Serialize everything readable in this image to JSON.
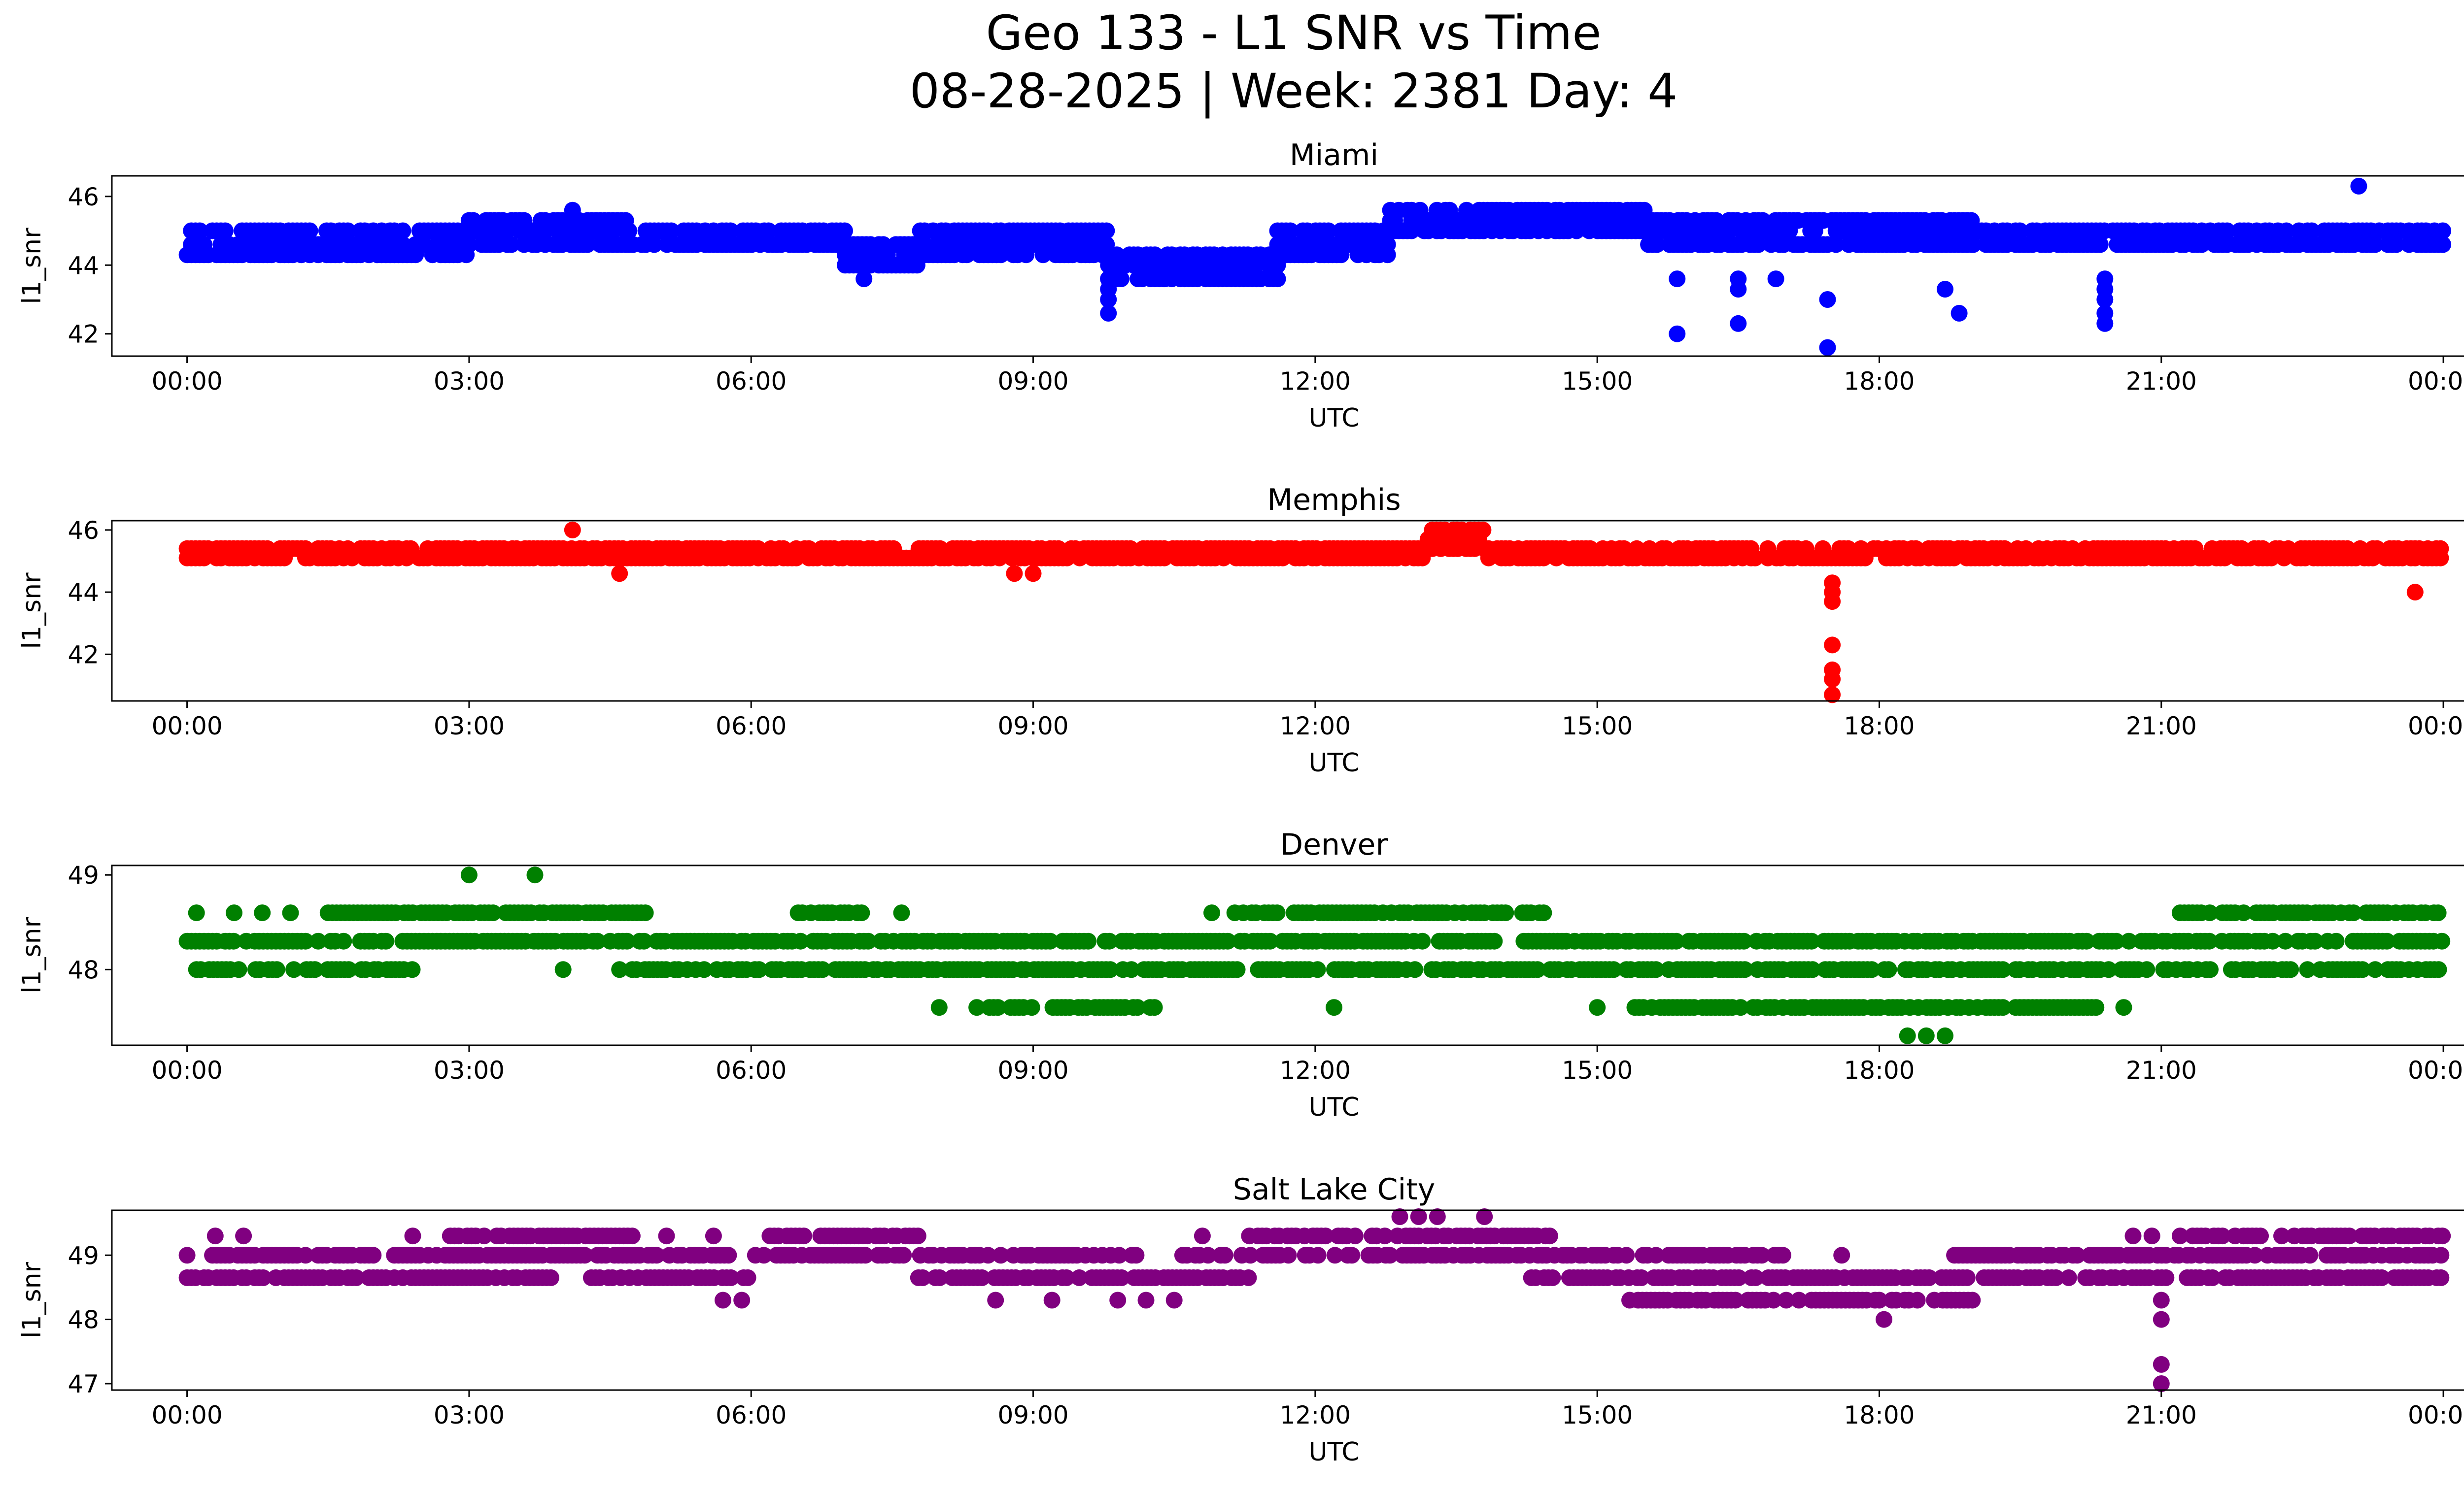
{
  "figure": {
    "title_line1": "Geo 133 - L1 SNR vs Time",
    "title_line2": "08-28-2025 | Week: 2381 Day: 4"
  },
  "chart_data": [
    {
      "type": "scatter",
      "title": "Miami",
      "xlabel": "UTC",
      "ylabel": "l1_snr",
      "color": "#0000ff",
      "xlim": [
        -0.8,
        25.2
      ],
      "ylim": [
        41.35,
        46.6
      ],
      "xticks": [
        0,
        3,
        6,
        9,
        12,
        15,
        18,
        21,
        24
      ],
      "xtick_labels": [
        "00:00",
        "03:00",
        "06:00",
        "09:00",
        "12:00",
        "15:00",
        "18:00",
        "21:00",
        "00:00"
      ],
      "yticks": [
        42,
        44,
        46
      ],
      "ytick_labels": [
        "42",
        "44",
        "46"
      ],
      "band_segments": [
        {
          "x": [
            0.0,
            3.0
          ],
          "levels": [
            44.3,
            44.6,
            45.0
          ]
        },
        {
          "x": [
            3.0,
            4.7
          ],
          "levels": [
            44.6,
            45.0,
            45.3
          ]
        },
        {
          "x": [
            4.7,
            7.0
          ],
          "levels": [
            44.6,
            45.0
          ]
        },
        {
          "x": [
            7.0,
            7.8
          ],
          "levels": [
            44.0,
            44.3,
            44.6
          ]
        },
        {
          "x": [
            7.8,
            9.8
          ],
          "levels": [
            44.3,
            44.6,
            45.0
          ]
        },
        {
          "x": [
            9.8,
            11.6
          ],
          "levels": [
            43.6,
            44.0,
            44.3
          ]
        },
        {
          "x": [
            11.6,
            12.8
          ],
          "levels": [
            44.3,
            44.6,
            45.0
          ]
        },
        {
          "x": [
            12.8,
            15.5
          ],
          "levels": [
            45.0,
            45.3,
            45.6
          ]
        },
        {
          "x": [
            15.5,
            17.0
          ],
          "levels": [
            44.6,
            45.0,
            45.3
          ]
        },
        {
          "x": [
            17.0,
            19.0
          ],
          "levels": [
            44.6,
            45.0,
            45.3
          ]
        },
        {
          "x": [
            19.0,
            24.0
          ],
          "levels": [
            44.6,
            45.0
          ]
        }
      ],
      "points": [
        [
          9.8,
          42.6
        ],
        [
          9.8,
          43.0
        ],
        [
          9.8,
          43.3
        ],
        [
          9.8,
          43.6
        ],
        [
          15.85,
          42.0
        ],
        [
          15.85,
          43.6
        ],
        [
          16.5,
          42.3
        ],
        [
          16.5,
          43.3
        ],
        [
          16.5,
          43.6
        ],
        [
          16.9,
          43.6
        ],
        [
          17.45,
          41.6
        ],
        [
          17.45,
          43.0
        ],
        [
          18.7,
          43.3
        ],
        [
          18.85,
          42.6
        ],
        [
          20.4,
          42.3
        ],
        [
          20.4,
          42.6
        ],
        [
          20.4,
          43.0
        ],
        [
          20.4,
          43.3
        ],
        [
          20.4,
          43.6
        ],
        [
          23.1,
          46.3
        ],
        [
          4.1,
          45.6
        ],
        [
          7.2,
          43.6
        ],
        [
          10.4,
          43.6
        ]
      ]
    },
    {
      "type": "scatter",
      "title": "Memphis",
      "xlabel": "UTC",
      "ylabel": "l1_snr",
      "color": "#ff0000",
      "xlim": [
        -0.8,
        25.2
      ],
      "ylim": [
        40.5,
        46.3
      ],
      "xticks": [
        0,
        3,
        6,
        9,
        12,
        15,
        18,
        21,
        24
      ],
      "xtick_labels": [
        "00:00",
        "03:00",
        "06:00",
        "09:00",
        "12:00",
        "15:00",
        "18:00",
        "21:00",
        "00:00"
      ],
      "yticks": [
        42,
        44,
        46
      ],
      "ytick_labels": [
        "42",
        "44",
        "46"
      ],
      "band_segments": [
        {
          "x": [
            0.0,
            2.2
          ],
          "levels": [
            45.1,
            45.4
          ]
        },
        {
          "x": [
            2.2,
            4.5
          ],
          "levels": [
            45.1,
            45.4
          ]
        },
        {
          "x": [
            4.5,
            13.2
          ],
          "levels": [
            45.1,
            45.4
          ]
        },
        {
          "x": [
            13.2,
            13.8
          ],
          "levels": [
            45.4,
            45.7,
            46.0
          ]
        },
        {
          "x": [
            13.8,
            24.0
          ],
          "levels": [
            45.1,
            45.4
          ]
        }
      ],
      "points": [
        [
          17.5,
          40.7
        ],
        [
          17.5,
          41.2
        ],
        [
          17.5,
          41.5
        ],
        [
          17.5,
          42.3
        ],
        [
          17.5,
          43.7
        ],
        [
          17.5,
          44.0
        ],
        [
          17.5,
          44.3
        ],
        [
          23.7,
          44.0
        ],
        [
          4.1,
          46.0
        ],
        [
          13.5,
          46.0
        ],
        [
          4.6,
          44.6
        ],
        [
          8.8,
          44.6
        ],
        [
          9.0,
          44.6
        ]
      ]
    },
    {
      "type": "scatter",
      "title": "Denver",
      "xlabel": "UTC",
      "ylabel": "l1_snr",
      "color": "#008000",
      "xlim": [
        -0.8,
        25.2
      ],
      "ylim": [
        47.2,
        49.1
      ],
      "xticks": [
        0,
        3,
        6,
        9,
        12,
        15,
        18,
        21,
        24
      ],
      "xtick_labels": [
        "00:00",
        "03:00",
        "06:00",
        "09:00",
        "12:00",
        "15:00",
        "18:00",
        "21:00",
        "00:00"
      ],
      "yticks": [
        48,
        49
      ],
      "ytick_labels": [
        "48",
        "49"
      ],
      "band_segments": [
        {
          "x": [
            0.0,
            24.0
          ],
          "levels": [
            48.3
          ]
        },
        {
          "x": [
            0.1,
            2.4
          ],
          "levels": [
            48.0
          ]
        },
        {
          "x": [
            4.6,
            24.0
          ],
          "levels": [
            48.0
          ]
        },
        {
          "x": [
            1.5,
            4.9
          ],
          "levels": [
            48.6
          ]
        },
        {
          "x": [
            6.5,
            7.2
          ],
          "levels": [
            48.6
          ]
        },
        {
          "x": [
            11.1,
            14.5
          ],
          "levels": [
            48.6
          ]
        },
        {
          "x": [
            21.2,
            24.0
          ],
          "levels": [
            48.6
          ]
        },
        {
          "x": [
            8.4,
            10.3
          ],
          "levels": [
            47.6
          ]
        },
        {
          "x": [
            15.4,
            20.4
          ],
          "levels": [
            47.6
          ]
        }
      ],
      "points": [
        [
          3.0,
          49.0
        ],
        [
          3.7,
          49.0
        ],
        [
          4.0,
          48.0
        ],
        [
          0.1,
          48.6
        ],
        [
          0.5,
          48.6
        ],
        [
          0.8,
          48.6
        ],
        [
          1.1,
          48.6
        ],
        [
          8.0,
          47.6
        ],
        [
          12.2,
          47.6
        ],
        [
          15.0,
          47.6
        ],
        [
          20.6,
          47.6
        ],
        [
          18.3,
          47.3
        ],
        [
          18.5,
          47.3
        ],
        [
          18.7,
          47.3
        ],
        [
          10.9,
          48.6
        ],
        [
          7.6,
          48.6
        ]
      ]
    },
    {
      "type": "scatter",
      "title": "Salt Lake City",
      "xlabel": "UTC",
      "ylabel": "l1_snr",
      "color": "#800080",
      "xlim": [
        -0.8,
        25.2
      ],
      "ylim": [
        46.9,
        49.7
      ],
      "xticks": [
        0,
        3,
        6,
        9,
        12,
        15,
        18,
        21,
        24
      ],
      "xtick_labels": [
        "00:00",
        "03:00",
        "06:00",
        "09:00",
        "12:00",
        "15:00",
        "18:00",
        "21:00",
        "00:00"
      ],
      "yticks": [
        47,
        48,
        49
      ],
      "ytick_labels": [
        "47",
        "48",
        "49"
      ],
      "band_segments": [
        {
          "x": [
            0.0,
            5.8
          ],
          "levels": [
            49.0
          ]
        },
        {
          "x": [
            0.0,
            4.0
          ],
          "levels": [
            48.65
          ]
        },
        {
          "x": [
            4.3,
            6.0
          ],
          "levels": [
            48.65
          ]
        },
        {
          "x": [
            6.0,
            10.2
          ],
          "levels": [
            49.0
          ]
        },
        {
          "x": [
            7.6,
            11.3
          ],
          "levels": [
            48.65
          ]
        },
        {
          "x": [
            10.5,
            14.5
          ],
          "levels": [
            49.0
          ]
        },
        {
          "x": [
            14.5,
            17.0
          ],
          "levels": [
            49.0
          ]
        },
        {
          "x": [
            14.3,
            24.0
          ],
          "levels": [
            48.65
          ]
        },
        {
          "x": [
            15.3,
            19.0
          ],
          "levels": [
            48.3
          ]
        },
        {
          "x": [
            18.8,
            24.0
          ],
          "levels": [
            49.0
          ]
        },
        {
          "x": [
            2.8,
            4.8
          ],
          "levels": [
            49.3
          ]
        },
        {
          "x": [
            6.2,
            7.8
          ],
          "levels": [
            49.3
          ]
        },
        {
          "x": [
            11.3,
            14.5
          ],
          "levels": [
            49.3
          ]
        },
        {
          "x": [
            21.2,
            24.0
          ],
          "levels": [
            49.3
          ]
        }
      ],
      "points": [
        [
          21.0,
          47.0
        ],
        [
          21.0,
          47.3
        ],
        [
          21.0,
          48.0
        ],
        [
          21.0,
          48.3
        ],
        [
          18.05,
          48.0
        ],
        [
          5.7,
          48.3
        ],
        [
          5.9,
          48.3
        ],
        [
          8.6,
          48.3
        ],
        [
          9.2,
          48.3
        ],
        [
          9.9,
          48.3
        ],
        [
          10.2,
          48.3
        ],
        [
          10.5,
          48.3
        ],
        [
          12.9,
          49.6
        ],
        [
          13.1,
          49.6
        ],
        [
          13.3,
          49.6
        ],
        [
          13.8,
          49.6
        ],
        [
          0.3,
          49.3
        ],
        [
          0.6,
          49.3
        ],
        [
          2.4,
          49.3
        ],
        [
          5.1,
          49.3
        ],
        [
          5.6,
          49.3
        ],
        [
          10.8,
          49.3
        ],
        [
          20.7,
          49.3
        ],
        [
          20.9,
          49.3
        ],
        [
          17.6,
          49.0
        ]
      ]
    }
  ]
}
